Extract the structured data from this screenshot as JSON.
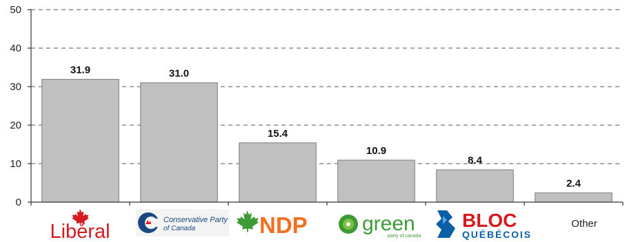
{
  "chart_data": {
    "type": "bar",
    "categories": [
      "Libéral",
      "Conservative Party of Canada",
      "NDP",
      "green party of canada",
      "BLOC QUÉBÉCOIS",
      "Other"
    ],
    "values": [
      31.9,
      31.0,
      15.4,
      10.9,
      8.4,
      2.4
    ],
    "value_labels": [
      "31.9",
      "31.0",
      "15.4",
      "10.9",
      "8.4",
      "2.4"
    ],
    "ylim": [
      0,
      50
    ],
    "yticks": [
      0,
      10,
      20,
      30,
      40,
      50
    ],
    "ytick_labels": [
      "0",
      "10",
      "20",
      "30",
      "40",
      "50"
    ],
    "grid": true,
    "colors": {
      "bar": "#c0c0c0",
      "liberal_red": "#d71920",
      "conservative_blue": "#1a4782",
      "ndp_orange": "#f37021",
      "green_green": "#3d9b35",
      "bloc_blue": "#0a5fa6"
    }
  },
  "logos": {
    "liberal": {
      "text": "Libéral",
      "icon": "maple-leaf-icon"
    },
    "conservative": {
      "line1": "Conservative Party",
      "line2": "of Canada",
      "icon": "conservative-c-icon"
    },
    "ndp": {
      "text": "NDP",
      "icon": "maple-leaf-icon"
    },
    "green": {
      "text": "green",
      "sub": "party of canada",
      "icon": "green-flower-icon"
    },
    "bloc": {
      "line1": "BLOC",
      "line2": "QUÉBÉCOIS",
      "icon": "bloc-emblem-icon"
    },
    "other": {
      "text": "Other"
    }
  }
}
